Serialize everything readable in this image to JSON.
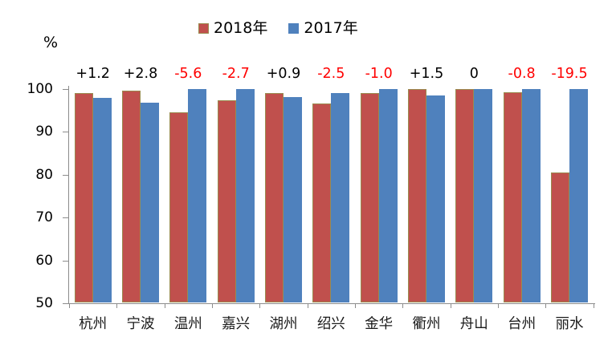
{
  "unit_label": "%",
  "legend": {
    "items": [
      {
        "label": "2018年",
        "color": "#c0504d",
        "border": "#9a8b4f"
      },
      {
        "label": "2017年",
        "color": "#4f81bd",
        "border": "#4f81bd"
      }
    ]
  },
  "chart_data": {
    "type": "bar",
    "title": "",
    "unit": "%",
    "categories": [
      "杭州",
      "宁波",
      "温州",
      "嘉兴",
      "湖州",
      "绍兴",
      "金华",
      "衢州",
      "舟山",
      "台州",
      "丽水"
    ],
    "series": [
      {
        "name": "2018年",
        "color": "#c0504d",
        "border": "#9a8b4f",
        "values": [
          98.9,
          99.5,
          94.3,
          97.2,
          98.8,
          96.4,
          98.9,
          99.9,
          99.9,
          99.1,
          80.4
        ]
      },
      {
        "name": "2017年",
        "color": "#4f81bd",
        "border": "#4f81bd",
        "values": [
          97.7,
          96.7,
          99.9,
          99.9,
          97.9,
          98.9,
          99.9,
          98.4,
          99.9,
          99.9,
          99.9
        ]
      }
    ],
    "annotations": [
      {
        "text": "+1.2",
        "color": "#000000"
      },
      {
        "text": "+2.8",
        "color": "#000000"
      },
      {
        "text": "-5.6",
        "color": "#ff0000"
      },
      {
        "text": "-2.7",
        "color": "#ff0000"
      },
      {
        "text": "+0.9",
        "color": "#000000"
      },
      {
        "text": "-2.5",
        "color": "#ff0000"
      },
      {
        "text": "-1.0",
        "color": "#ff0000"
      },
      {
        "text": "+1.5",
        "color": "#000000"
      },
      {
        "text": "0",
        "color": "#000000"
      },
      {
        "text": "-0.8",
        "color": "#ff0000"
      },
      {
        "text": "-19.5",
        "color": "#ff0000"
      }
    ],
    "xlabel": "",
    "ylabel": "%",
    "ylim": [
      50,
      100
    ],
    "yticks": [
      50,
      60,
      70,
      80,
      90,
      100
    ],
    "grid": false,
    "legend_position": "top-center",
    "axis_color": "#8c8c8c"
  }
}
